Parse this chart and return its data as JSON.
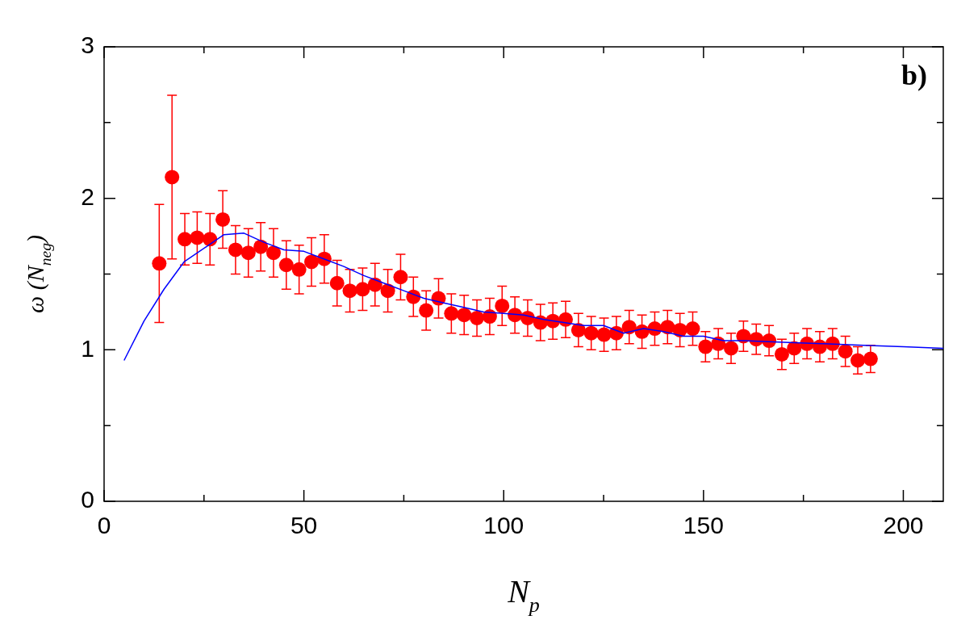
{
  "chart_data": {
    "type": "scatter",
    "xlabel": "N$_{p}$",
    "ylabel": "ω (N$_{neg}$)",
    "annotations": [
      "b)"
    ],
    "xlim": [
      0,
      210
    ],
    "xticks": [
      0,
      {
        "value": 25,
        "label": null
      },
      50,
      {
        "value": 75,
        "label": null
      },
      100,
      {
        "value": 125,
        "label": null
      },
      150,
      {
        "value": 175,
        "label": null
      },
      200
    ],
    "ylim": [
      0,
      3
    ],
    "yticks": [
      0,
      {
        "value": 0.5,
        "label": null
      },
      1,
      {
        "value": 1.5,
        "label": null
      },
      2,
      {
        "value": 2.5,
        "label": null
      },
      3
    ],
    "marker": "circle",
    "legend": false,
    "series": [
      {
        "color": "#ff0000",
        "x": [
          13.8,
          17.0,
          20.2,
          23.3,
          26.5,
          29.7,
          32.9,
          36.1,
          39.2,
          42.4,
          45.6,
          48.8,
          51.9,
          55.1,
          58.3,
          61.5,
          64.7,
          67.8,
          71.0,
          74.2,
          77.4,
          80.6,
          83.7,
          86.9,
          90.1,
          93.3,
          96.5,
          99.6,
          102.8,
          106.0,
          109.2,
          112.3,
          115.5,
          118.7,
          121.9,
          125.1,
          128.2,
          131.4,
          134.6,
          137.8,
          141.0,
          144.1,
          147.3,
          150.5,
          153.7,
          156.9,
          160.0,
          163.2,
          166.4,
          169.6,
          172.7,
          175.9,
          179.1,
          182.3,
          185.5,
          188.6,
          191.8
        ],
        "values": [
          1.57,
          2.14,
          1.73,
          1.74,
          1.73,
          1.86,
          1.66,
          1.64,
          1.68,
          1.64,
          1.56,
          1.53,
          1.58,
          1.6,
          1.44,
          1.39,
          1.4,
          1.43,
          1.39,
          1.48,
          1.35,
          1.26,
          1.34,
          1.24,
          1.23,
          1.21,
          1.22,
          1.29,
          1.23,
          1.21,
          1.18,
          1.19,
          1.2,
          1.13,
          1.11,
          1.1,
          1.11,
          1.15,
          1.12,
          1.14,
          1.15,
          1.13,
          1.14,
          1.02,
          1.04,
          1.01,
          1.09,
          1.07,
          1.06,
          0.97,
          1.01,
          1.04,
          1.02,
          1.04,
          0.99,
          0.93,
          0.94
        ],
        "errors": [
          0.39,
          0.54,
          0.17,
          0.17,
          0.17,
          0.19,
          0.16,
          0.16,
          0.16,
          0.16,
          0.16,
          0.16,
          0.16,
          0.16,
          0.15,
          0.14,
          0.14,
          0.14,
          0.14,
          0.15,
          0.13,
          0.13,
          0.13,
          0.13,
          0.13,
          0.12,
          0.12,
          0.13,
          0.12,
          0.12,
          0.12,
          0.12,
          0.12,
          0.11,
          0.11,
          0.11,
          0.11,
          0.11,
          0.11,
          0.11,
          0.11,
          0.11,
          0.11,
          0.1,
          0.1,
          0.1,
          0.1,
          0.1,
          0.1,
          0.1,
          0.1,
          0.1,
          0.1,
          0.1,
          0.1,
          0.09,
          0.09
        ]
      },
      {
        "type": "line",
        "color": "#0000ff",
        "marker": "none",
        "x": [
          5,
          10,
          15,
          20,
          30,
          35,
          40,
          45,
          50,
          55,
          60,
          65,
          70,
          75,
          80,
          85,
          90,
          95,
          100,
          105,
          110,
          115,
          120,
          125,
          130,
          135,
          140,
          145,
          150,
          155,
          160,
          170,
          180,
          190,
          200,
          210
        ],
        "values": [
          0.93,
          1.19,
          1.4,
          1.58,
          1.76,
          1.77,
          1.71,
          1.66,
          1.65,
          1.6,
          1.55,
          1.49,
          1.44,
          1.39,
          1.34,
          1.31,
          1.28,
          1.25,
          1.24,
          1.23,
          1.2,
          1.18,
          1.16,
          1.16,
          1.11,
          1.14,
          1.12,
          1.09,
          1.09,
          1.06,
          1.06,
          1.05,
          1.04,
          1.03,
          1.02,
          1.01
        ]
      }
    ]
  }
}
